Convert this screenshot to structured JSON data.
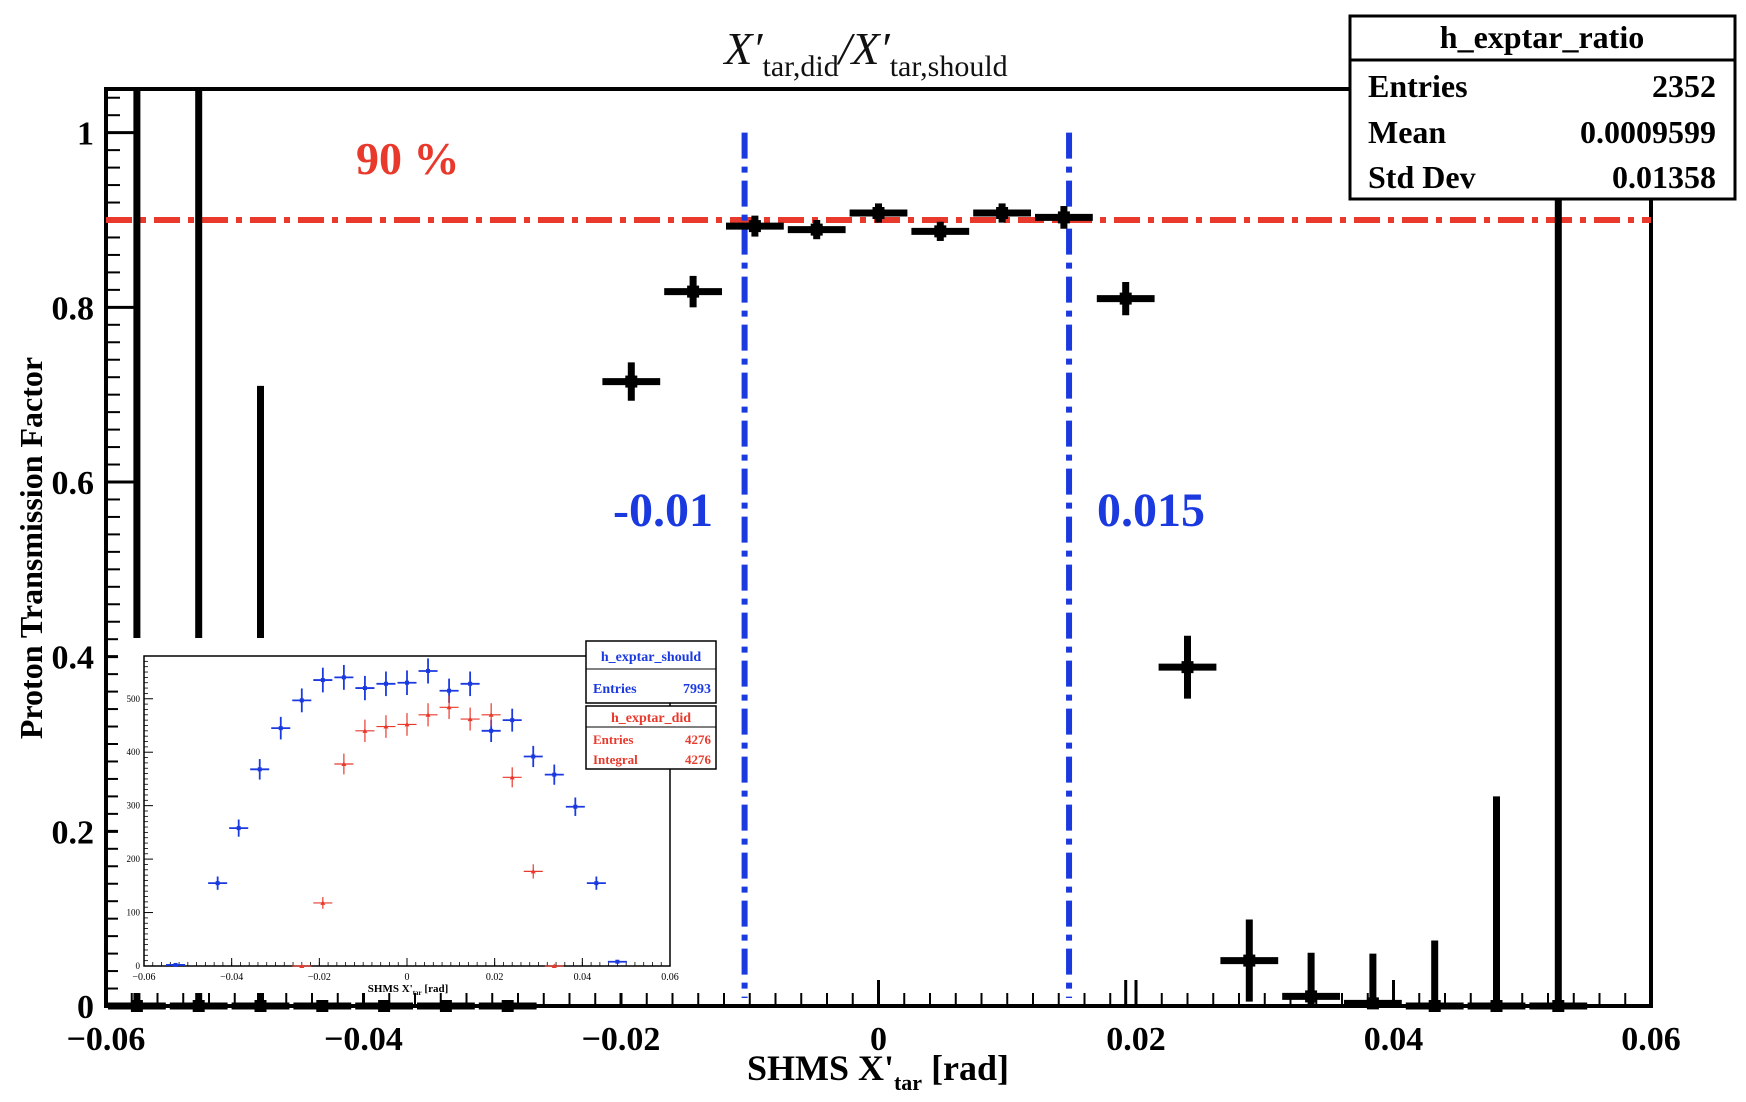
{
  "chart_data": {
    "type": "scatter",
    "title_main": "X′",
    "title_sub1": "tar,did",
    "title_slash": "/X′",
    "title_sub2": "tar,should",
    "xlabel_main": "SHMS X'",
    "xlabel_sub": "tar",
    "xlabel_unit": " [rad]",
    "ylabel": "Proton Transmission Factor",
    "xlim": [
      -0.06,
      0.06
    ],
    "ylim": [
      0,
      1.05
    ],
    "x_ticks": [
      -0.06,
      -0.04,
      -0.02,
      0,
      0.02,
      0.04,
      0.06
    ],
    "x_tick_labels": [
      "−0.06",
      "−0.04",
      "−0.02",
      "0",
      "0.02",
      "0.04",
      "0.06"
    ],
    "y_ticks": [
      0,
      0.2,
      0.4,
      0.6,
      0.8,
      1
    ],
    "y_tick_labels": [
      "0",
      "0.2",
      "0.4",
      "0.6",
      "0.8",
      "1"
    ],
    "bin_width": 0.0048,
    "points": [
      {
        "x": -0.0576,
        "y": 0.0,
        "ey": 1.05
      },
      {
        "x": -0.0528,
        "y": 0.0,
        "ey": 1.05
      },
      {
        "x": -0.048,
        "y": 0.0,
        "ey": 0.71
      },
      {
        "x": -0.0432,
        "y": 0.0,
        "ey": 0.0
      },
      {
        "x": -0.0384,
        "y": 0.0,
        "ey": 0.0
      },
      {
        "x": -0.0336,
        "y": 0.0,
        "ey": 0.0
      },
      {
        "x": -0.0288,
        "y": 0.0,
        "ey": 0.0
      },
      {
        "x": -0.0192,
        "y": 0.715,
        "ey": 0.022
      },
      {
        "x": -0.0144,
        "y": 0.818,
        "ey": 0.018
      },
      {
        "x": -0.0096,
        "y": 0.893,
        "ey": 0.012
      },
      {
        "x": -0.0048,
        "y": 0.889,
        "ey": 0.011
      },
      {
        "x": 0.0,
        "y": 0.908,
        "ey": 0.011
      },
      {
        "x": 0.0048,
        "y": 0.887,
        "ey": 0.011
      },
      {
        "x": 0.0096,
        "y": 0.908,
        "ey": 0.011
      },
      {
        "x": 0.0144,
        "y": 0.903,
        "ey": 0.013
      },
      {
        "x": 0.0192,
        "y": 0.81,
        "ey": 0.019
      },
      {
        "x": 0.024,
        "y": 0.388,
        "ey": 0.036
      },
      {
        "x": 0.0288,
        "y": 0.052,
        "ey": 0.047
      },
      {
        "x": 0.0336,
        "y": 0.011,
        "ey": 0.05
      },
      {
        "x": 0.0384,
        "y": 0.003,
        "ey": 0.057
      },
      {
        "x": 0.0432,
        "y": 0.0,
        "ey": 0.075
      },
      {
        "x": 0.048,
        "y": 0.0,
        "ey": 0.24
      },
      {
        "x": 0.0528,
        "y": 0.0,
        "ey": 1.05
      }
    ],
    "tick_marks_only": [
      0.0,
      0.0192
    ],
    "hline": {
      "y": 0.9,
      "label": "90 %",
      "color": "#e8392c"
    },
    "vlines": [
      {
        "x": -0.0104,
        "label": "-0.01",
        "color": "#1a3ae0"
      },
      {
        "x": 0.0148,
        "label": "0.015",
        "color": "#1a3ae0"
      }
    ],
    "stats": {
      "name": "h_exptar_ratio",
      "rows": [
        {
          "label": "Entries",
          "value": "2352"
        },
        {
          "label": "Mean",
          "value": "0.0009599"
        },
        {
          "label": "Std Dev",
          "value": "0.01358"
        }
      ]
    },
    "inset": {
      "type": "scatter",
      "xlim": [
        -0.06,
        0.06
      ],
      "ylim": [
        0,
        580
      ],
      "x_ticks": [
        -0.06,
        -0.04,
        -0.02,
        0,
        0.02,
        0.04,
        0.06
      ],
      "x_tick_labels": [
        "−0.06",
        "−0.04",
        "−0.02",
        "0",
        "0.02",
        "0.04",
        "0.06"
      ],
      "y_ticks": [
        0,
        100,
        200,
        300,
        400,
        500
      ],
      "y_tick_labels": [
        "0",
        "100",
        "200",
        "300",
        "400",
        "500"
      ],
      "xlabel_main": "SHMS X'",
      "xlabel_sub": "tar",
      "xlabel_unit": " [rad]",
      "series": [
        {
          "name": "h_exptar_should",
          "color": "#1a3ae0",
          "x": [
            -0.0528,
            -0.0432,
            -0.0384,
            -0.0336,
            -0.0288,
            -0.024,
            -0.0192,
            -0.0144,
            -0.0096,
            -0.0048,
            0.0,
            0.0048,
            0.0096,
            0.0144,
            0.0192,
            0.024,
            0.0288,
            0.0336,
            0.0384,
            0.0432,
            0.048
          ],
          "values": [
            2,
            155,
            258,
            368,
            445,
            497,
            535,
            540,
            520,
            528,
            530,
            552,
            515,
            528,
            440,
            460,
            392,
            358,
            298,
            155,
            8
          ],
          "stats": [
            {
              "label": "Entries",
              "value": "7993"
            }
          ]
        },
        {
          "name": "h_exptar_did",
          "color": "#e8392c",
          "x": [
            -0.024,
            -0.0192,
            -0.0144,
            -0.0096,
            -0.0048,
            0.0,
            0.0048,
            0.0096,
            0.0144,
            0.0192,
            0.024,
            0.0288,
            0.0336
          ],
          "values": [
            0,
            118,
            378,
            440,
            448,
            452,
            470,
            484,
            462,
            470,
            353,
            177,
            0
          ],
          "stats": [
            {
              "label": "Entries",
              "value": "4276"
            },
            {
              "label": "Integral",
              "value": "4276"
            }
          ]
        }
      ]
    }
  }
}
